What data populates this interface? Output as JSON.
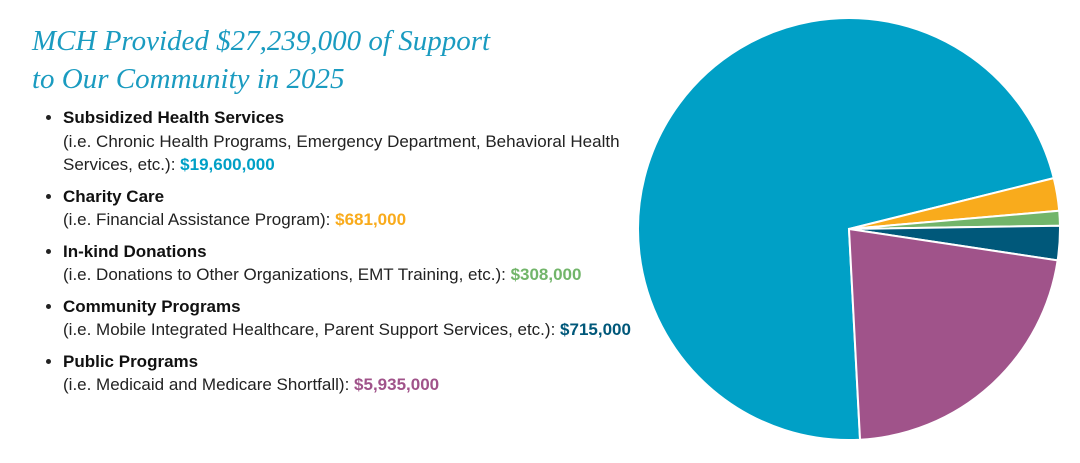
{
  "chart_data": {
    "type": "pie",
    "title": "MCH Provided $27,239,000 of Support to Our Community in 2025",
    "categories": [
      "Subsidized Health Services",
      "Charity Care",
      "In-kind Donations",
      "Community Programs",
      "Public Programs"
    ],
    "descriptions": [
      "(i.e. Chronic Health Programs, Emergency Department, Behavioral Health Services, etc.):",
      "(i.e. Financial Assistance Program):",
      "(i.e. Donations to Other Organizations, EMT Training, etc.):",
      "(i.e. Mobile Integrated Healthcare, Parent Support Services, etc.):",
      "(i.e. Medicaid and Medicare Shortfall):"
    ],
    "values": [
      19600000,
      681000,
      308000,
      715000,
      5935000
    ],
    "value_labels": [
      "$19,600,000",
      "$681,000",
      "$308,000",
      "$715,000",
      "$5,935,000"
    ],
    "colors": [
      "#00a0c6",
      "#f9ab1c",
      "#72b56a",
      "#00587a",
      "#a0538a"
    ]
  }
}
